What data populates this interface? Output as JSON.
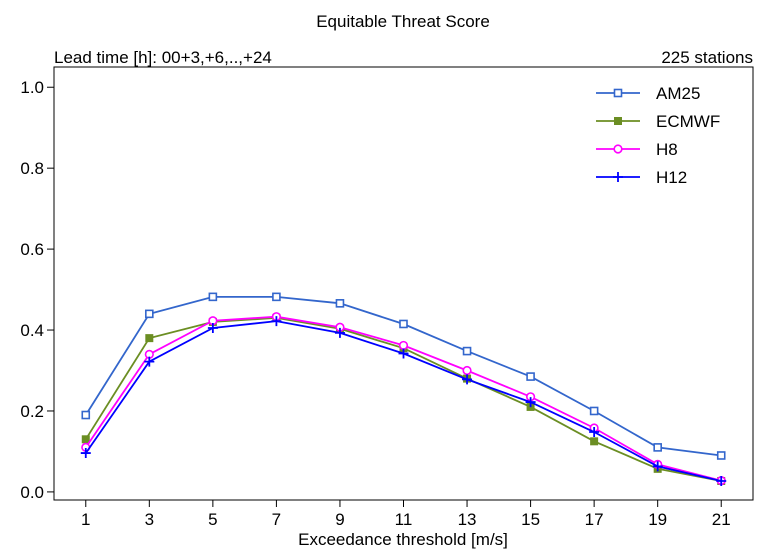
{
  "chart_data": {
    "type": "line",
    "title": "Equitable Threat Score",
    "subtitle_left": "Lead time [h]: 00+3,+6,..,+24",
    "subtitle_right": "225 stations",
    "xlabel": "Exceedance threshold [m/s]",
    "ylabel": "",
    "x": [
      1,
      3,
      5,
      7,
      9,
      11,
      13,
      15,
      17,
      19,
      21
    ],
    "xlim": [
      0,
      22
    ],
    "ylim": [
      -0.02,
      1.05
    ],
    "yticks": [
      0.0,
      0.2,
      0.4,
      0.6,
      0.8,
      1.0
    ],
    "ytick_labels": [
      "0.0",
      "0.2",
      "0.4",
      "0.6",
      "0.8",
      "1.0"
    ],
    "xtick_labels": [
      "1",
      "3",
      "5",
      "7",
      "9",
      "11",
      "13",
      "15",
      "17",
      "19",
      "21"
    ],
    "grid": false,
    "legend_position": "top-right",
    "series": [
      {
        "name": "AM25",
        "color": "#3366cc",
        "marker": "open-square",
        "values": [
          0.19,
          0.44,
          0.482,
          0.482,
          0.466,
          0.415,
          0.348,
          0.285,
          0.2,
          0.11,
          0.09
        ]
      },
      {
        "name": "ECMWF",
        "color": "#6b8e23",
        "marker": "filled-square",
        "values": [
          0.13,
          0.38,
          0.42,
          0.43,
          0.403,
          0.355,
          0.28,
          0.21,
          0.125,
          0.057,
          0.027
        ]
      },
      {
        "name": "H8",
        "color": "#ff00ff",
        "marker": "open-circle",
        "values": [
          0.11,
          0.34,
          0.423,
          0.433,
          0.407,
          0.362,
          0.3,
          0.235,
          0.158,
          0.068,
          0.028
        ]
      },
      {
        "name": "H12",
        "color": "#0000ff",
        "marker": "plus",
        "values": [
          0.096,
          0.322,
          0.405,
          0.422,
          0.393,
          0.342,
          0.278,
          0.222,
          0.148,
          0.063,
          0.027
        ]
      }
    ]
  }
}
